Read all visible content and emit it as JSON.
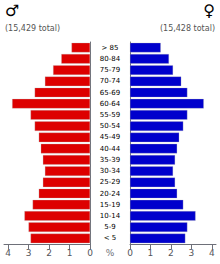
{
  "chart_data": {
    "type": "bar",
    "orientation": "horizontal",
    "categories": [
      "< 5",
      "5-9",
      "10-14",
      "15-19",
      "20-24",
      "25-29",
      "30-34",
      "35-39",
      "40-44",
      "45-49",
      "50-54",
      "55-59",
      "60-64",
      "65-69",
      "70-74",
      "75-79",
      "80-84",
      "> 85"
    ],
    "series": [
      {
        "color": "#dd0000",
        "values": [
          2.9,
          3.0,
          3.2,
          2.8,
          2.5,
          2.3,
          2.2,
          2.3,
          2.4,
          2.5,
          2.7,
          2.9,
          3.8,
          2.7,
          2.2,
          1.8,
          1.4,
          0.9
        ]
      },
      {
        "color": "#0000cc",
        "values": [
          2.7,
          2.8,
          3.2,
          2.6,
          2.3,
          2.2,
          2.1,
          2.2,
          2.3,
          2.4,
          2.6,
          2.8,
          3.6,
          2.8,
          2.5,
          2.1,
          1.9,
          1.5
        ]
      }
    ],
    "xlabel": "%",
    "xlim": [
      0,
      4.2
    ],
    "xticks": [
      0,
      1,
      2,
      3,
      4
    ],
    "grid": false,
    "annotations": [
      "♂",
      "(15,429 total)",
      "♀",
      "(15,428 total)"
    ]
  }
}
